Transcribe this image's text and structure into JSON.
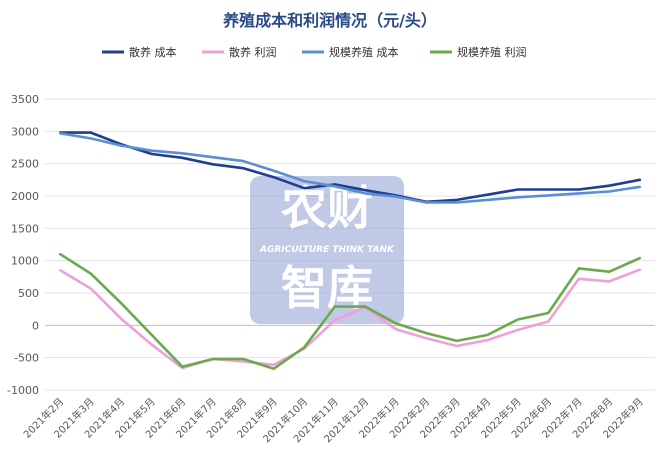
{
  "chart_data": {
    "type": "line",
    "title": "养殖成本和利润情况（元/头）",
    "categories": [
      "2021年2月",
      "2021年3月",
      "2021年4月",
      "2021年5月",
      "2021年6月",
      "2021年7月",
      "2021年8月",
      "2021年9月",
      "2021年10月",
      "2021年11月",
      "2021年12月",
      "2022年1月",
      "2022年2月",
      "2022年3月",
      "2022年4月",
      "2022年5月",
      "2022年6月",
      "2022年7月",
      "2022年8月",
      "2022年9月"
    ],
    "ylim": [
      -1000,
      3500
    ],
    "yticks": [
      -1000,
      -500,
      0,
      500,
      1000,
      1500,
      2000,
      2500,
      3000,
      3500
    ],
    "grid": true,
    "legend_position": "top",
    "series": [
      {
        "name": "散养  成本",
        "color": "#1f3f8f",
        "values": [
          2980,
          2980,
          2800,
          2650,
          2590,
          2490,
          2430,
          2290,
          2120,
          2180,
          2090,
          2010,
          1910,
          1940,
          2020,
          2100,
          2100,
          2100,
          2160,
          2250
        ]
      },
      {
        "name": "散养  利润",
        "color": "#f0a0d8",
        "values": [
          850,
          570,
          100,
          -300,
          -660,
          -520,
          -560,
          -610,
          -360,
          80,
          280,
          -60,
          -200,
          -320,
          -230,
          -70,
          60,
          720,
          680,
          860
        ]
      },
      {
        "name": "规模养殖  成本",
        "color": "#5a8fd4",
        "values": [
          2970,
          2890,
          2780,
          2700,
          2660,
          2600,
          2540,
          2390,
          2230,
          2150,
          2040,
          1990,
          1900,
          1900,
          1940,
          1980,
          2010,
          2040,
          2070,
          2140
        ]
      },
      {
        "name": "规模养殖  利润",
        "color": "#6aaa4a",
        "values": [
          1100,
          800,
          340,
          -150,
          -640,
          -520,
          -520,
          -670,
          -340,
          290,
          290,
          30,
          -120,
          -240,
          -150,
          90,
          190,
          880,
          830,
          1040
        ]
      }
    ]
  },
  "watermark": {
    "line1": "农财",
    "line2": "AGRICULTURE  THINK TANK",
    "line3": "智库"
  }
}
